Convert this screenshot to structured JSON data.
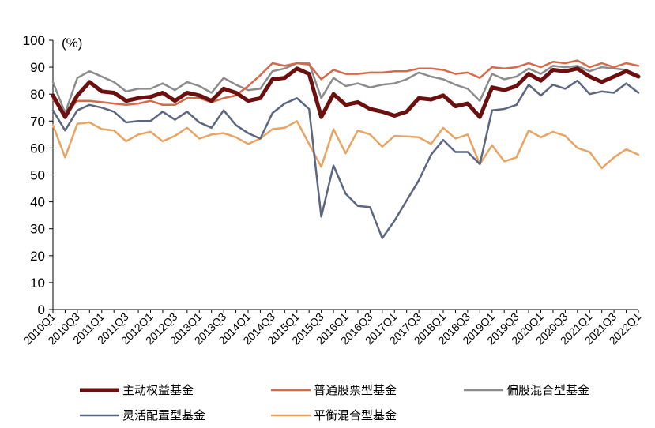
{
  "chart_data": {
    "type": "line",
    "unit_label": "(%)",
    "ylim": [
      0,
      100
    ],
    "yticks": [
      0,
      10,
      20,
      30,
      40,
      50,
      60,
      70,
      80,
      90,
      100
    ],
    "grid": false,
    "legend_position": "bottom",
    "categories": [
      "2010Q1",
      "2010Q2",
      "2010Q3",
      "2010Q4",
      "2011Q1",
      "2011Q2",
      "2011Q3",
      "2011Q4",
      "2012Q1",
      "2012Q2",
      "2012Q3",
      "2012Q4",
      "2013Q1",
      "2013Q2",
      "2013Q3",
      "2013Q4",
      "2014Q1",
      "2014Q2",
      "2014Q3",
      "2014Q4",
      "2015Q1",
      "2015Q2",
      "2015Q3",
      "2015Q4",
      "2016Q1",
      "2016Q2",
      "2016Q3",
      "2016Q4",
      "2017Q1",
      "2017Q2",
      "2017Q3",
      "2017Q4",
      "2018Q1",
      "2018Q2",
      "2018Q3",
      "2018Q4",
      "2019Q1",
      "2019Q2",
      "2019Q3",
      "2019Q4",
      "2020Q1",
      "2020Q2",
      "2020Q3",
      "2020Q4",
      "2021Q1",
      "2021Q2",
      "2021Q3",
      "2021Q4",
      "2022Q1"
    ],
    "tick_labels": [
      "2010Q1",
      "2010Q3",
      "2011Q1",
      "2011Q3",
      "2012Q1",
      "2012Q3",
      "2013Q1",
      "2013Q3",
      "2014Q1",
      "2014Q3",
      "2015Q1",
      "2015Q3",
      "2016Q1",
      "2016Q3",
      "2017Q1",
      "2017Q3",
      "2018Q1",
      "2018Q3",
      "2019Q1",
      "2019Q3",
      "2020Q1",
      "2020Q3",
      "2021Q1",
      "2021Q3",
      "2022Q1"
    ],
    "series": [
      {
        "name": "平衡混合型基金",
        "color": "#E8A462",
        "width": 2.5,
        "values": [
          68.5,
          56.5,
          69,
          69.5,
          67,
          66.5,
          62.5,
          65,
          66,
          62.5,
          64.5,
          67.5,
          63.5,
          65,
          65.5,
          64,
          61.5,
          63.5,
          67,
          67.5,
          70,
          61.5,
          53,
          67,
          58,
          66.5,
          65,
          60.5,
          64.5,
          64.3,
          64,
          61.5,
          67.5,
          63.5,
          65,
          54,
          61,
          55,
          56.5,
          66.5,
          64,
          66,
          64.5,
          60,
          58.5,
          52.5,
          56.5,
          59.5,
          57.5
        ]
      },
      {
        "name": "灵活配置型基金",
        "color": "#5D6681",
        "width": 2.5,
        "values": [
          74,
          66.5,
          74,
          76,
          75,
          73.5,
          69.5,
          70,
          70,
          73.5,
          70.5,
          73.5,
          69.5,
          67.5,
          74,
          68.5,
          65.5,
          63.5,
          73,
          76.5,
          78.5,
          74.5,
          34.5,
          53.5,
          43,
          38.5,
          38,
          26.5,
          33,
          40.5,
          48,
          57.5,
          63,
          58.5,
          58.5,
          54,
          74,
          74.5,
          76,
          83.5,
          79.5,
          83.5,
          82,
          85,
          80,
          81,
          80.5,
          84,
          80.5
        ]
      },
      {
        "name": "偏股混合型基金",
        "color": "#8C8C8C",
        "width": 2.5,
        "values": [
          84.5,
          73,
          86,
          88.5,
          86.5,
          84.5,
          81,
          82,
          82,
          84,
          81.5,
          84.5,
          83,
          80.5,
          86,
          83.5,
          81.5,
          82,
          88.5,
          89.5,
          91.5,
          91.5,
          78.5,
          86,
          83,
          84,
          82.5,
          83.5,
          84,
          85.5,
          88,
          86.5,
          85.5,
          83.5,
          82,
          77.5,
          87.5,
          85.5,
          86.5,
          89.5,
          87.5,
          90.5,
          90,
          90.5,
          88.5,
          90,
          89.5,
          89,
          87
        ]
      },
      {
        "name": "普通股票型基金",
        "color": "#D46A4A",
        "width": 2.5,
        "values": [
          78,
          72.5,
          77.5,
          77.5,
          77,
          76.5,
          76,
          76.5,
          77.5,
          76,
          76,
          78.5,
          78.5,
          77,
          78.5,
          79.5,
          83,
          87,
          91.5,
          90.5,
          91.5,
          91,
          85.5,
          89,
          87.5,
          87.5,
          88,
          88,
          88.5,
          88.5,
          89.5,
          89.5,
          89,
          87.5,
          88,
          86,
          90,
          89.5,
          90,
          91.5,
          90,
          92,
          91.5,
          92.5,
          90,
          91.5,
          90,
          91.5,
          90.5
        ]
      },
      {
        "name": "主动权益基金",
        "color": "#6B0F0F",
        "width": 5,
        "values": [
          79.5,
          71.5,
          79.5,
          84.5,
          81,
          80.5,
          77.5,
          78.5,
          79,
          80.5,
          77.5,
          80.5,
          79.5,
          77.5,
          82,
          80.5,
          77.5,
          78.5,
          85.5,
          86,
          89.5,
          87.5,
          71.5,
          80,
          76,
          77,
          74.5,
          73.5,
          72,
          73.5,
          78.5,
          78,
          79.5,
          75.5,
          76.5,
          71.5,
          82.5,
          81.5,
          83,
          87.5,
          85,
          89,
          88.5,
          89.5,
          86.5,
          84.5,
          86.5,
          88.5,
          86.5
        ]
      }
    ],
    "legend": [
      {
        "name": "主动权益基金",
        "color": "#6B0F0F",
        "width": 5
      },
      {
        "name": "普通股票型基金",
        "color": "#D46A4A",
        "width": 2.5
      },
      {
        "name": "偏股混合型基金",
        "color": "#8C8C8C",
        "width": 2.5
      },
      {
        "name": "灵活配置型基金",
        "color": "#5D6681",
        "width": 2.5
      },
      {
        "name": "平衡混合型基金",
        "color": "#E8A462",
        "width": 2.5
      }
    ]
  }
}
